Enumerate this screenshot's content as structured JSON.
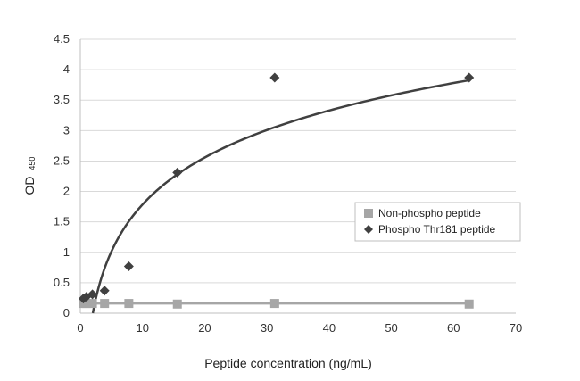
{
  "chart_data": {
    "type": "scatter",
    "xlabel": "Peptide concentration (ng/mL)",
    "ylabel": "OD",
    "ylabel_subscript": "450",
    "xlim": [
      0,
      70
    ],
    "ylim": [
      0,
      4.5
    ],
    "xticks": [
      "0",
      "10",
      "20",
      "30",
      "40",
      "50",
      "60",
      "70"
    ],
    "yticks": [
      "0",
      "0.5",
      "1",
      "1.5",
      "2",
      "2.5",
      "3",
      "3.5",
      "4",
      "4.5"
    ],
    "grid": "horizontal",
    "legend_position": "right",
    "series": [
      {
        "name": "Non-phospho peptide",
        "marker": "square",
        "color": "#a6a6a6",
        "x": [
          0.49,
          0.98,
          1.95,
          3.9,
          7.8,
          15.6,
          31.25,
          62.5
        ],
        "y": [
          0.16,
          0.16,
          0.16,
          0.16,
          0.16,
          0.15,
          0.16,
          0.15
        ]
      },
      {
        "name": "Phospho Thr181 peptide",
        "marker": "diamond",
        "color": "#404040",
        "x": [
          0.49,
          0.98,
          1.95,
          3.9,
          7.8,
          15.6,
          31.25,
          62.5
        ],
        "y": [
          0.24,
          0.27,
          0.31,
          0.37,
          0.77,
          2.31,
          3.87,
          3.87
        ]
      }
    ],
    "trendlines": [
      {
        "series": "Non-phospho peptide",
        "kind": "linear",
        "color": "#a6a6a6",
        "coefficients": [
          0.16,
          0
        ]
      },
      {
        "series": "Phospho Thr181 peptide",
        "kind": "logarithmic",
        "color": "#404040",
        "coefficients": [
          1.114,
          -0.78
        ]
      }
    ]
  }
}
